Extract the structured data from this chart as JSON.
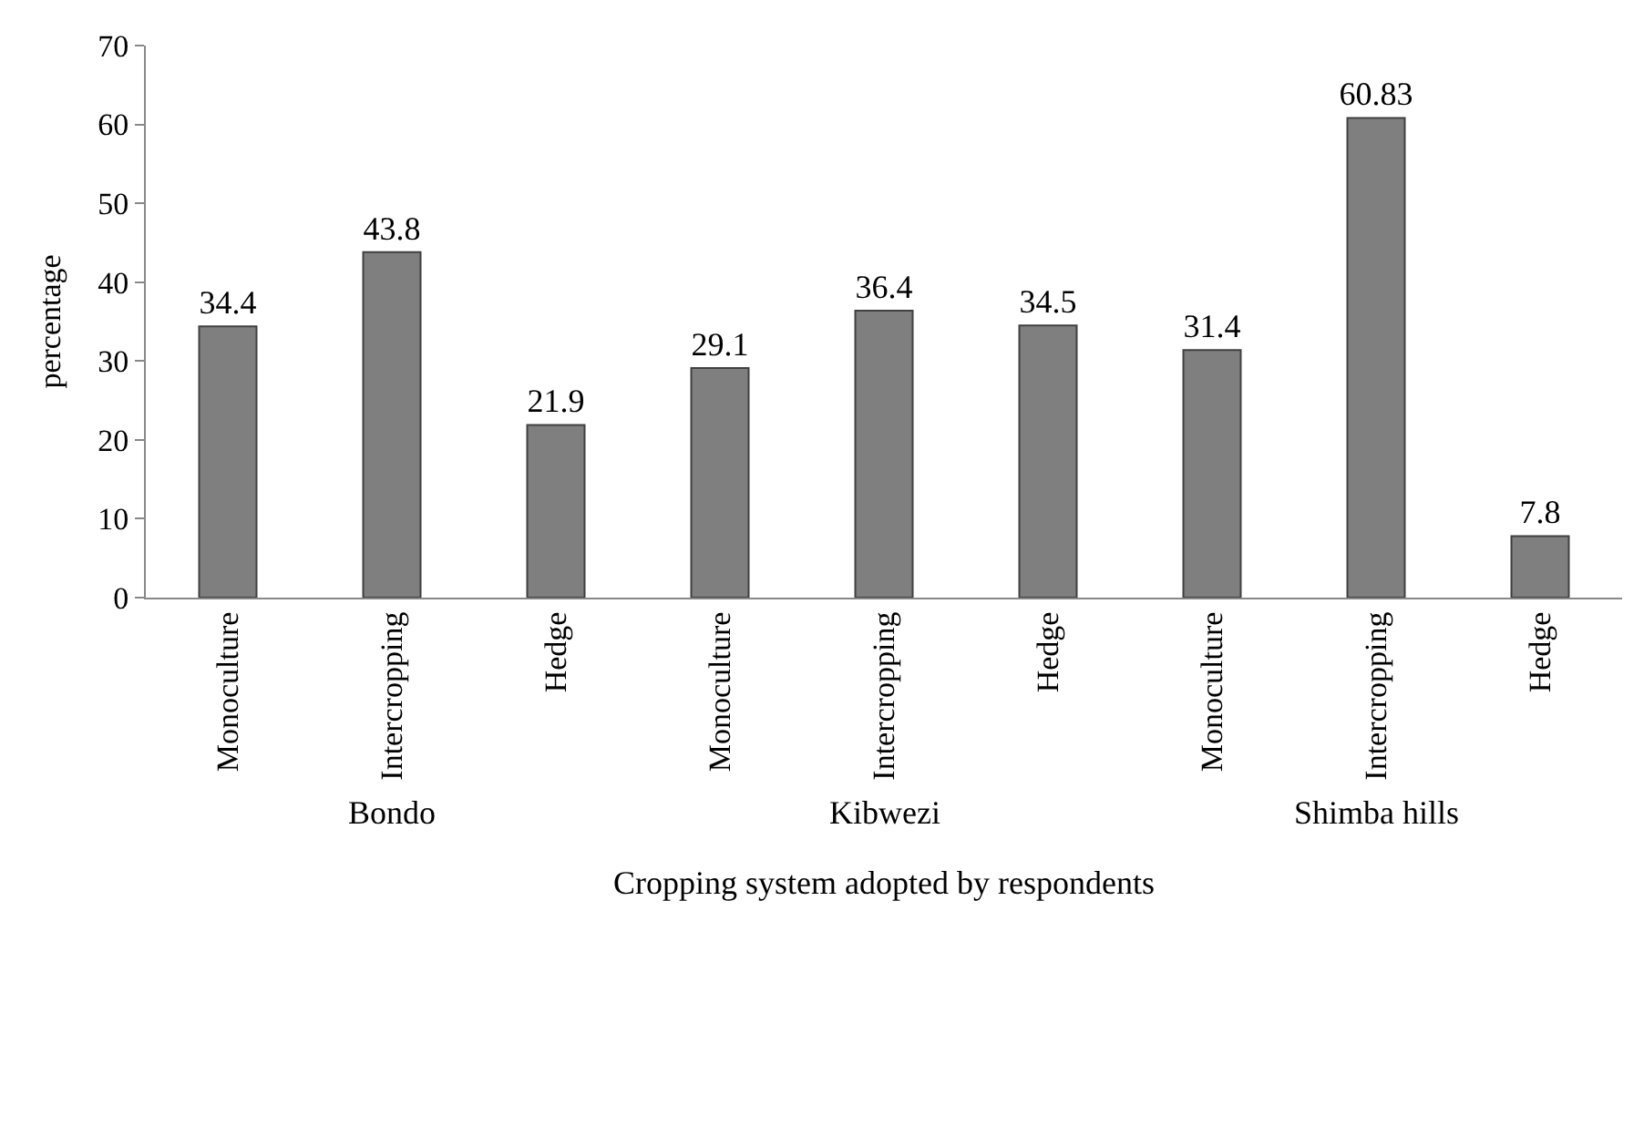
{
  "chart_data": {
    "type": "bar",
    "xlabel": "Cropping system adopted by respondents",
    "ylabel": "percentage",
    "categories": [
      "Monoculture",
      "Intercropping",
      "Hedge",
      "Monoculture",
      "Intercropping",
      "Hedge",
      "Monoculture",
      "Intercropping",
      "Hedge"
    ],
    "values": [
      34.4,
      43.8,
      21.9,
      29.1,
      36.4,
      34.5,
      31.4,
      60.83,
      7.8
    ],
    "color": "#7f7f7f",
    "data_labels": true,
    "ylim": [
      0,
      70
    ],
    "yticks": [
      0,
      10,
      20,
      30,
      40,
      50,
      60,
      70
    ],
    "annotations": [
      "Bondo",
      "Kibwezi",
      "Shimba hills"
    ]
  }
}
